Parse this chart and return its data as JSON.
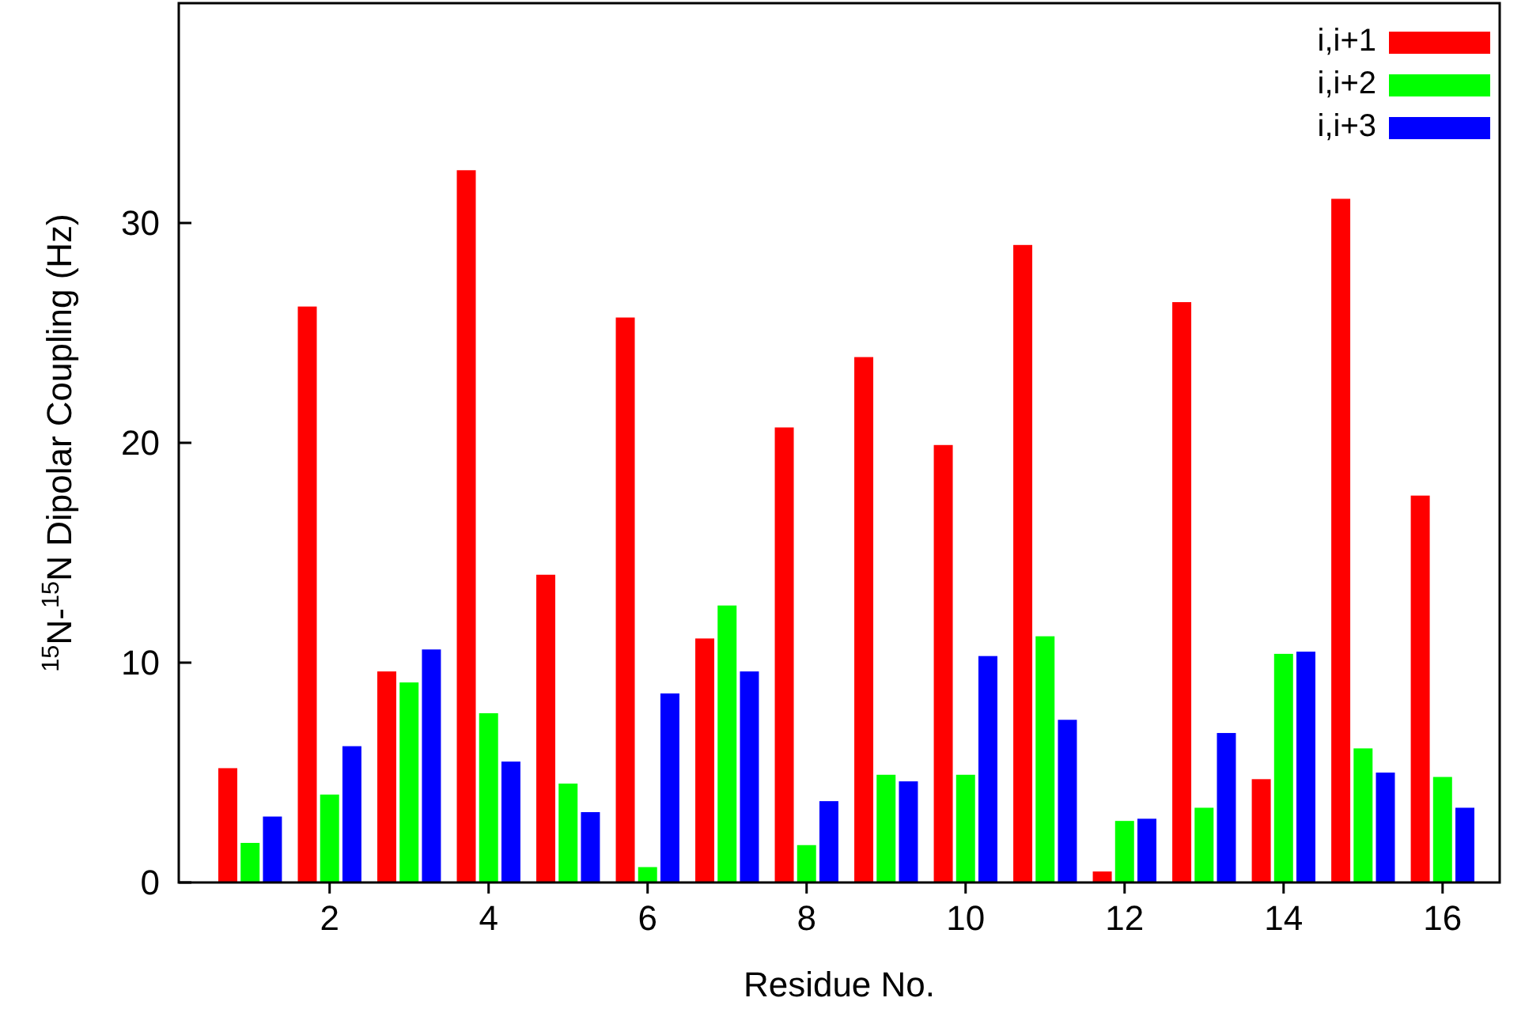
{
  "chart_data": {
    "type": "bar",
    "xlabel": "Residue No.",
    "ylabel": "$^{15}$N-$^{15}$N Dipolar Coupling (Hz)",
    "categories": [
      null,
      "2",
      null,
      "4",
      null,
      "6",
      null,
      "8",
      null,
      "10",
      null,
      "12",
      null,
      "14",
      null,
      "16"
    ],
    "series": [
      {
        "name": "i,i+1",
        "color": "#ff0000",
        "values": [
          5.2,
          26.2,
          9.6,
          32.4,
          14.0,
          25.7,
          11.1,
          20.7,
          23.9,
          19.9,
          29.0,
          0.5,
          26.4,
          4.7,
          31.1,
          17.6
        ]
      },
      {
        "name": "i,i+2",
        "color": "#00ff00",
        "values": [
          1.8,
          4.0,
          9.1,
          7.7,
          4.5,
          0.7,
          12.6,
          1.7,
          4.9,
          4.9,
          11.2,
          2.8,
          3.4,
          10.4,
          6.1,
          4.8
        ]
      },
      {
        "name": "i,i+3",
        "color": "#0000ff",
        "values": [
          3.0,
          6.2,
          10.6,
          5.5,
          3.2,
          8.6,
          9.6,
          3.7,
          4.6,
          10.3,
          7.4,
          2.9,
          6.8,
          10.5,
          5.0,
          3.4
        ]
      }
    ],
    "ylim": [
      0,
      40
    ],
    "yticks": [
      0,
      10,
      20,
      30
    ],
    "grid": false,
    "legend": "top right"
  }
}
